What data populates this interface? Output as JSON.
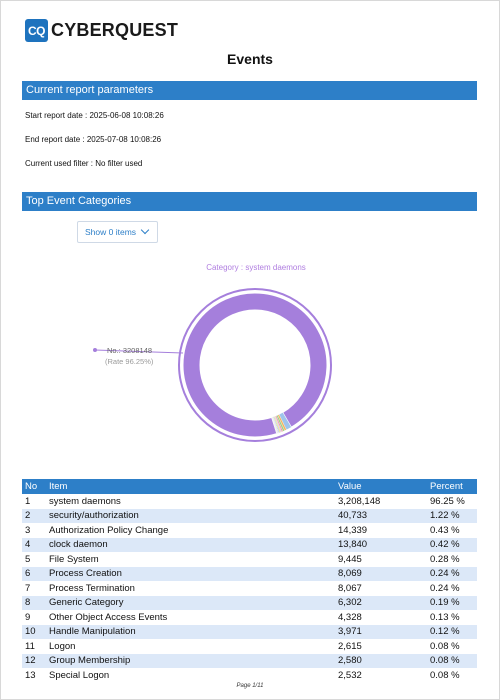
{
  "brand": {
    "mark": "CQ",
    "name": "CYBERQUEST"
  },
  "title": "Events",
  "parameters": {
    "heading": "Current report parameters",
    "start": "Start report date : 2025-06-08 10:08:26",
    "end": "End report date : 2025-07-08 10:08:26",
    "filter": "Current used filter : No filter used"
  },
  "categories": {
    "heading": "Top Event Categories",
    "dropdown_label": "Show 0 items",
    "chart_caption": "Category : system daemons",
    "callout_label": "No.: 3208148",
    "callout_rate": "(Rate 96.25%)"
  },
  "colors": {
    "primary": "#2d7fc8",
    "slice_main": "#a57fdc",
    "slice_small": [
      "#9ec4ec",
      "#f2b45e",
      "#9ad08a",
      "#f08a8a",
      "#c9b5ec",
      "#f5d96b",
      "#7fc6d3",
      "#e8a3c9",
      "#b5b5b5",
      "#8ea8e0",
      "#f2c4a0",
      "#a3d9b8"
    ]
  },
  "table": {
    "columns": [
      "No",
      "Item",
      "Value",
      "Percent"
    ],
    "rows": [
      [
        "1",
        "system daemons",
        "3,208,148",
        "96.25 %"
      ],
      [
        "2",
        "security/authorization",
        "40,733",
        "1.22 %"
      ],
      [
        "3",
        "Authorization Policy Change",
        "14,339",
        "0.43 %"
      ],
      [
        "4",
        "clock daemon",
        "13,840",
        "0.42 %"
      ],
      [
        "5",
        "File System",
        "9,445",
        "0.28 %"
      ],
      [
        "6",
        "Process Creation",
        "8,069",
        "0.24 %"
      ],
      [
        "7",
        "Process Termination",
        "8,067",
        "0.24 %"
      ],
      [
        "8",
        "Generic Category",
        "6,302",
        "0.19 %"
      ],
      [
        "9",
        "Other Object Access Events",
        "4,328",
        "0.13 %"
      ],
      [
        "10",
        "Handle Manipulation",
        "3,971",
        "0.12 %"
      ],
      [
        "11",
        "Logon",
        "2,615",
        "0.08 %"
      ],
      [
        "12",
        "Group Membership",
        "2,580",
        "0.08 %"
      ],
      [
        "13",
        "Special Logon",
        "2,532",
        "0.08 %"
      ]
    ]
  },
  "chart_data": {
    "type": "pie",
    "categories": [
      "system daemons",
      "security/authorization",
      "Authorization Policy Change",
      "clock daemon",
      "File System",
      "Process Creation",
      "Process Termination",
      "Generic Category",
      "Other Object Access Events",
      "Handle Manipulation",
      "Logon",
      "Group Membership",
      "Special Logon"
    ],
    "values": [
      3208148,
      40733,
      14339,
      13840,
      9445,
      8069,
      8067,
      6302,
      4328,
      3971,
      2615,
      2580,
      2532
    ],
    "title": "Category : system daemons"
  },
  "footer": "Page 1/11"
}
